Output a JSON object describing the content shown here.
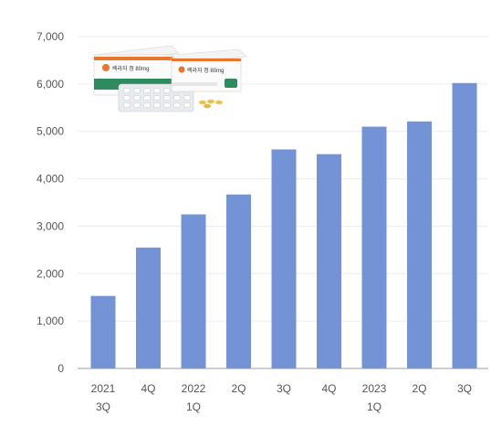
{
  "chart_data": {
    "type": "bar",
    "categories": [
      [
        "2021",
        "3Q"
      ],
      [
        "4Q"
      ],
      [
        "2022",
        "1Q"
      ],
      [
        "2Q"
      ],
      [
        "3Q"
      ],
      [
        "4Q"
      ],
      [
        "2023",
        "1Q"
      ],
      [
        "2Q"
      ],
      [
        "3Q"
      ]
    ],
    "values": [
      1530,
      2550,
      3250,
      3670,
      4620,
      4520,
      5100,
      5210,
      6020
    ],
    "ylim": [
      0,
      7000
    ],
    "yticks": [
      "0",
      "1,000",
      "2,000",
      "3,000",
      "4,000",
      "5,000",
      "6,000",
      "7,000"
    ],
    "ytick_values": [
      0,
      1000,
      2000,
      3000,
      4000,
      5000,
      6000,
      7000
    ],
    "grid": true,
    "bar_color": "#7393d6",
    "title": "",
    "xlabel": "",
    "ylabel": ""
  },
  "product_image": {
    "icon": "medicine-package-photo",
    "box_label_1": "렉라자 정 80mg",
    "box_label_2": "렉라자 정 80mg",
    "accent_orange": "#e8772e",
    "accent_green": "#2e8b5e"
  }
}
